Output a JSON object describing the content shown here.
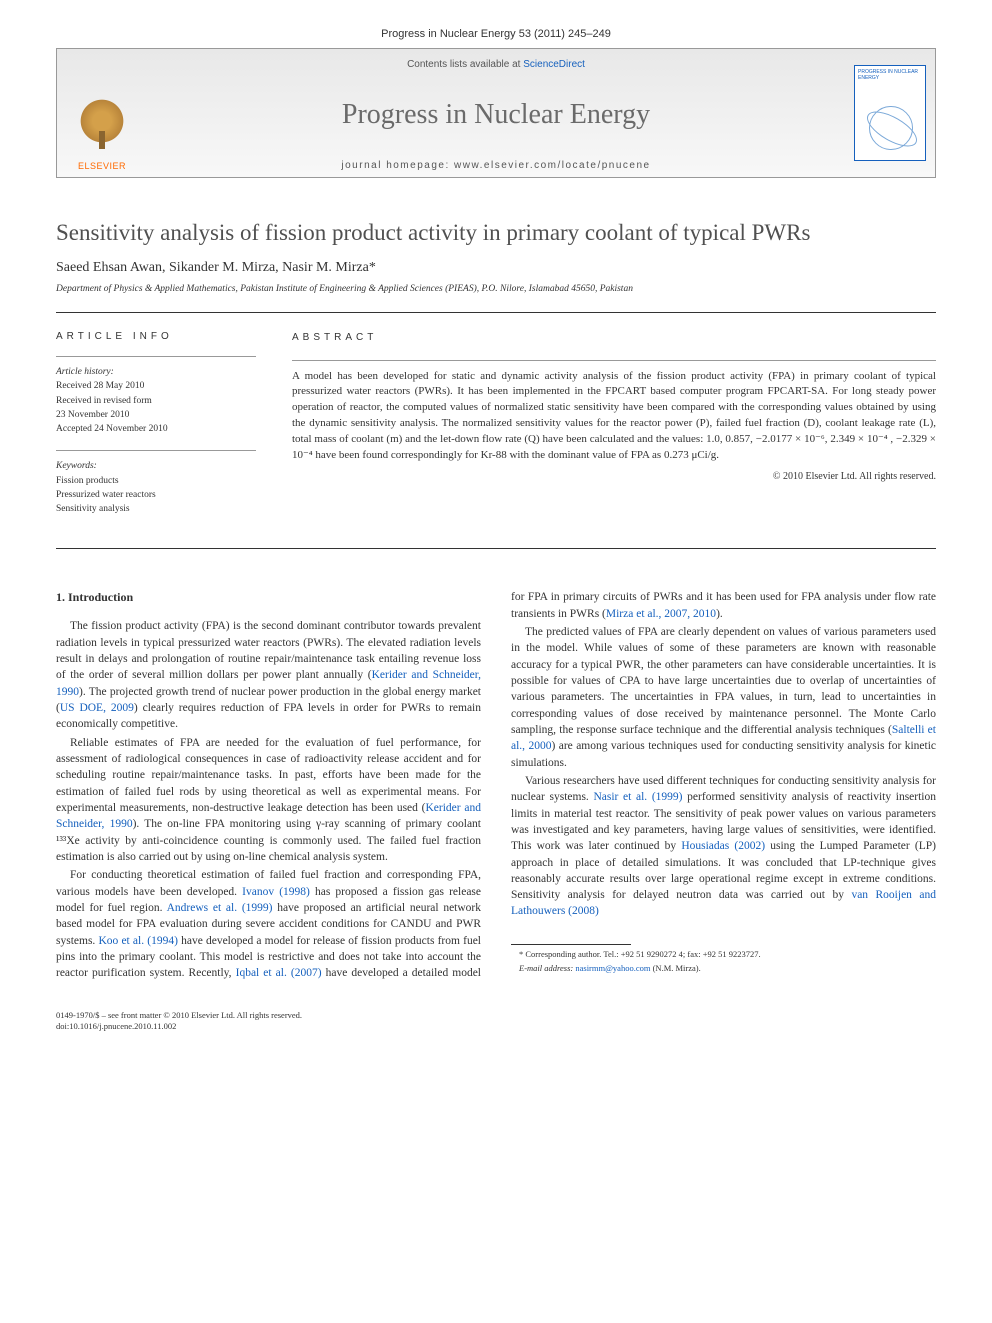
{
  "journal_ref": "Progress in Nuclear Energy 53 (2011) 245–249",
  "banner": {
    "contents_prefix": "Contents lists available at ",
    "contents_link": "ScienceDirect",
    "journal_title": "Progress in Nuclear Energy",
    "homepage_prefix": "journal homepage: ",
    "homepage_url": "www.elsevier.com/locate/pnucene",
    "publisher_label": "ELSEVIER",
    "cover_label": "PROGRESS IN NUCLEAR ENERGY"
  },
  "article": {
    "title": "Sensitivity analysis of fission product activity in primary coolant of typical PWRs",
    "authors": "Saeed Ehsan Awan, Sikander M. Mirza, Nasir M. Mirza*",
    "affiliation": "Department of Physics & Applied Mathematics, Pakistan Institute of Engineering & Applied Sciences (PIEAS), P.O. Nilore, Islamabad 45650, Pakistan"
  },
  "info": {
    "label": "ARTICLE INFO",
    "history_hdr": "Article history:",
    "history": [
      "Received 28 May 2010",
      "Received in revised form",
      "23 November 2010",
      "Accepted 24 November 2010"
    ],
    "keywords_hdr": "Keywords:",
    "keywords": [
      "Fission products",
      "Pressurized water reactors",
      "Sensitivity analysis"
    ]
  },
  "abstract": {
    "label": "ABSTRACT",
    "text": "A model has been developed for static and dynamic activity analysis of the fission product activity (FPA) in primary coolant of typical pressurized water reactors (PWRs). It has been implemented in the FPCART based computer program FPCART-SA. For long steady power operation of reactor, the computed values of normalized static sensitivity have been compared with the corresponding values obtained by using the dynamic sensitivity analysis. The normalized sensitivity values for the reactor power (P), failed fuel fraction (D), coolant leakage rate (L), total mass of coolant (m) and the let-down flow rate (Q) have been calculated and the values: 1.0, 0.857, −2.0177 × 10⁻⁶, 2.349 × 10⁻⁴ , −2.329 × 10⁻⁴ have been found correspondingly for Kr-88 with the dominant value of FPA as 0.273 μCi/g.",
    "copyright": "© 2010 Elsevier Ltd. All rights reserved."
  },
  "body": {
    "section_heading": "1. Introduction",
    "p1a": "The fission product activity (FPA) is the second dominant contributor towards prevalent radiation levels in typical pressurized water reactors (PWRs). The elevated radiation levels result in delays and prolongation of routine repair/maintenance task entailing revenue loss of the order of several million dollars per power plant annually (",
    "p1_ref1": "Kerider and Schneider, 1990",
    "p1b": "). The projected growth trend of nuclear power production in the global energy market (",
    "p1_ref2": "US DOE, 2009",
    "p1c": ") clearly requires reduction of FPA levels in order for PWRs to remain economically competitive.",
    "p2a": "Reliable estimates of FPA are needed for the evaluation of fuel performance, for assessment of radiological consequences in case of radioactivity release accident and for scheduling routine repair/maintenance tasks. In past, efforts have been made for the estimation of failed fuel rods by using theoretical as well as experimental means. For experimental measurements, non-destructive leakage detection has been used (",
    "p2_ref1": "Kerider and Schneider, 1990",
    "p2b": "). The on-line FPA monitoring using γ-ray scanning of primary coolant ¹³³Xe activity by anti-coincidence counting is commonly used. The failed fuel fraction estimation is also carried out by using on-line chemical analysis system.",
    "p3a": "For conducting theoretical estimation of failed fuel fraction and corresponding FPA, various models have been developed. ",
    "p3_ref1": "Ivanov (1998)",
    "p3b": " has proposed a fission gas release model for fuel region. ",
    "p3_ref2": "Andrews et al. (1999)",
    "p3c": " have proposed an artificial neural network based model for FPA evaluation during severe accident conditions for CANDU and PWR systems. ",
    "p3_ref3": "Koo et al. (1994)",
    "p3d": " have developed a model for release of fission products from fuel pins into the primary coolant. This model is restrictive and does not take into account the reactor purification system. Recently, ",
    "p3_ref4": "Iqbal et al. (2007)",
    "p3e": " have developed a detailed model for FPA in primary circuits of PWRs and it has been used for FPA analysis under flow rate transients in PWRs (",
    "p3_ref5": "Mirza et al., 2007, 2010",
    "p3f": ").",
    "p4a": "The predicted values of FPA are clearly dependent on values of various parameters used in the model. While values of some of these parameters are known with reasonable accuracy for a typical PWR, the other parameters can have considerable uncertainties. It is possible for values of CPA to have large uncertainties due to overlap of uncertainties of various parameters. The uncertainties in FPA values, in turn, lead to uncertainties in corresponding values of dose received by maintenance personnel. The Monte Carlo sampling, the response surface technique and the differential analysis techniques (",
    "p4_ref1": "Saltelli et al., 2000",
    "p4b": ") are among various techniques used for conducting sensitivity analysis for kinetic simulations.",
    "p5a": "Various researchers have used different techniques for conducting sensitivity analysis for nuclear systems. ",
    "p5_ref1": "Nasir et al. (1999)",
    "p5b": " performed sensitivity analysis of reactivity insertion limits in material test reactor. The sensitivity of peak power values on various parameters was investigated and key parameters, having large values of sensitivities, were identified. This work was later continued by ",
    "p5_ref2": "Housiadas (2002)",
    "p5c": " using the Lumped Parameter (LP) approach in place of detailed simulations. It was concluded that LP-technique gives reasonably accurate results over large operational regime except in extreme conditions. Sensitivity analysis for delayed neutron data was carried out by ",
    "p5_ref3": "van Rooijen and Lathouwers (2008)"
  },
  "footnote": {
    "corr": "* Corresponding author. Tel.: +92 51 9290272 4; fax: +92 51 9223727.",
    "email_label": "E-mail address: ",
    "email": "nasirmm@yahoo.com",
    "email_suffix": " (N.M. Mirza)."
  },
  "bottom": {
    "line1": "0149-1970/$ – see front matter © 2010 Elsevier Ltd. All rights reserved.",
    "line2": "doi:10.1016/j.pnucene.2010.11.002"
  },
  "colors": {
    "link": "#1560bd",
    "text": "#333333",
    "title_gray": "#505050",
    "orange": "#ff6900"
  }
}
